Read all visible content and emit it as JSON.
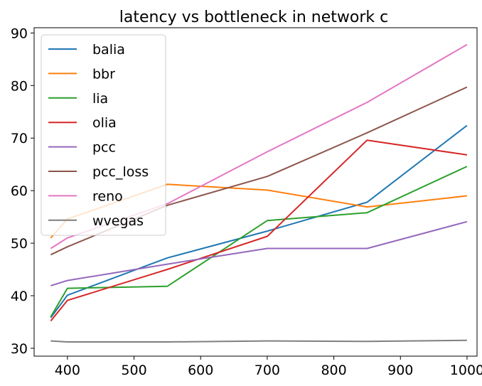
{
  "chart_data": {
    "type": "line",
    "title": "latency vs bottleneck in network c",
    "xlabel": "",
    "ylabel": "",
    "xlim": [
      350,
      1015
    ],
    "ylim": [
      28.5,
      91.0
    ],
    "xticks": [
      400,
      500,
      600,
      700,
      800,
      900,
      1000
    ],
    "yticks": [
      30,
      40,
      50,
      60,
      70,
      80,
      90
    ],
    "grid": false,
    "legend_position": "top-left",
    "x": [
      375,
      400,
      550,
      700,
      850,
      1000
    ],
    "series": [
      {
        "name": "balia",
        "color": "#1f77b4",
        "values": [
          35.8,
          40.1,
          47.2,
          52.3,
          57.8,
          72.4
        ]
      },
      {
        "name": "bbr",
        "color": "#ff7f0e",
        "values": [
          51.0,
          54.6,
          61.2,
          60.1,
          56.9,
          59.0
        ]
      },
      {
        "name": "lia",
        "color": "#2ca02c",
        "values": [
          36.0,
          41.4,
          41.8,
          54.3,
          55.8,
          64.6
        ]
      },
      {
        "name": "olia",
        "color": "#d62728",
        "values": [
          35.2,
          39.1,
          45.0,
          51.3,
          69.6,
          66.8
        ]
      },
      {
        "name": "pcc",
        "color": "#9467bd",
        "values": [
          41.9,
          42.9,
          46.0,
          49.0,
          49.0,
          54.1
        ]
      },
      {
        "name": "pcc_loss",
        "color": "#8c564b",
        "values": [
          47.8,
          49.3,
          57.2,
          62.7,
          71.0,
          79.7
        ]
      },
      {
        "name": "reno",
        "color": "#e377c2",
        "values": [
          49.0,
          51.0,
          57.5,
          67.4,
          76.8,
          87.8
        ]
      },
      {
        "name": "wvegas",
        "color": "#7f7f7f",
        "values": [
          31.4,
          31.2,
          31.2,
          31.4,
          31.3,
          31.5
        ]
      }
    ]
  }
}
